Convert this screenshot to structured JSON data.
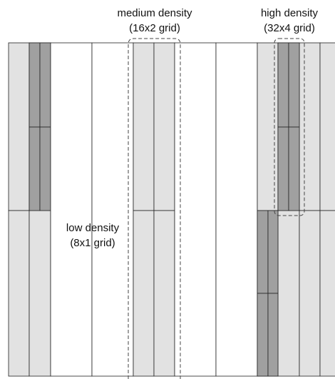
{
  "labels": {
    "medium_line1": "medium density",
    "medium_line2": "(16x2 grid)",
    "high_line1": "high density",
    "high_line2": "(32x4 grid)",
    "low_line1": "low density",
    "low_line2": "(8x1 grid)"
  },
  "colors": {
    "light_fill": "#e2e2e2",
    "dark_fill": "#a0a0a0",
    "white_fill": "#ffffff",
    "stroke": "#222222",
    "dashed_stroke": "#444444",
    "text": "#111111"
  }
}
